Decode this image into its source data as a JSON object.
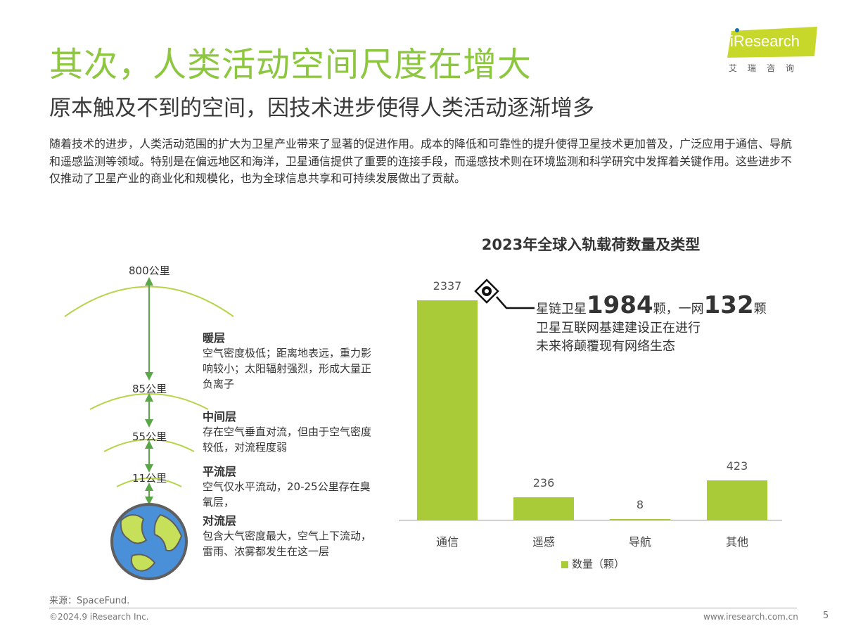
{
  "header": {
    "title": "其次，人类活动空间尺度在增大",
    "subtitle": "原本触及不到的空间，因技术进步使得人类活动逐渐增多",
    "logo_text": "iResearch",
    "logo_cn": "艾瑞咨询"
  },
  "body_text": "随着技术的进步，人类活动范围的扩大为卫星产业带来了显著的促进作用。成本的降低和可靠性的提升使得卫星技术更加普及，广泛应用于通信、导航和遥感监测等领域。特别是在偏远地区和海洋，卫星通信提供了重要的连接手段，而遥感技术则在环境监测和科学研究中发挥着关键作用。这些进步不仅推动了卫星产业的商业化和规模化，也为全球信息共享和可持续发展做出了贡献。",
  "diagram": {
    "altitudes": [
      "800公里",
      "85公里",
      "55公里",
      "11公里"
    ],
    "layers": [
      {
        "name": "暖层",
        "desc": "空气密度极低；距离地表远，重力影响较小；太阳辐射强烈，形成大量正负离子"
      },
      {
        "name": "中间层",
        "desc": "存在空气垂直对流，但由于空气密度较低，对流程度弱"
      },
      {
        "name": "平流层",
        "desc": "空气仅水平流动，20-25公里存在臭氧层，"
      },
      {
        "name": "对流层",
        "desc": "包含大气密度最大，空气上下流动，雷雨、浓雾都发生在这一层"
      }
    ]
  },
  "callout": {
    "prefix": "星链卫星",
    "num1": "1984",
    "mid": "颗，一网",
    "num2": "132",
    "suffix": "颗",
    "line2": "卫星互联网基建建设正在进行",
    "line3": "未来将颠覆现有网络生态"
  },
  "chart_data": {
    "type": "bar",
    "title": "2023年全球入轨载荷数量及类型",
    "categories": [
      "通信",
      "遥感",
      "导航",
      "其他"
    ],
    "series": [
      {
        "name": "数量（颗）",
        "values": [
          2337,
          236,
          8,
          423
        ]
      }
    ],
    "ylim": [
      0,
      2337
    ],
    "grid": false,
    "legend": "bottom",
    "color": "#a9cb37"
  },
  "footer": {
    "source": "来源：SpaceFund.",
    "copyright": "©2024.9 iResearch Inc.",
    "website": "www.iresearch.com.cn",
    "page": "5"
  }
}
